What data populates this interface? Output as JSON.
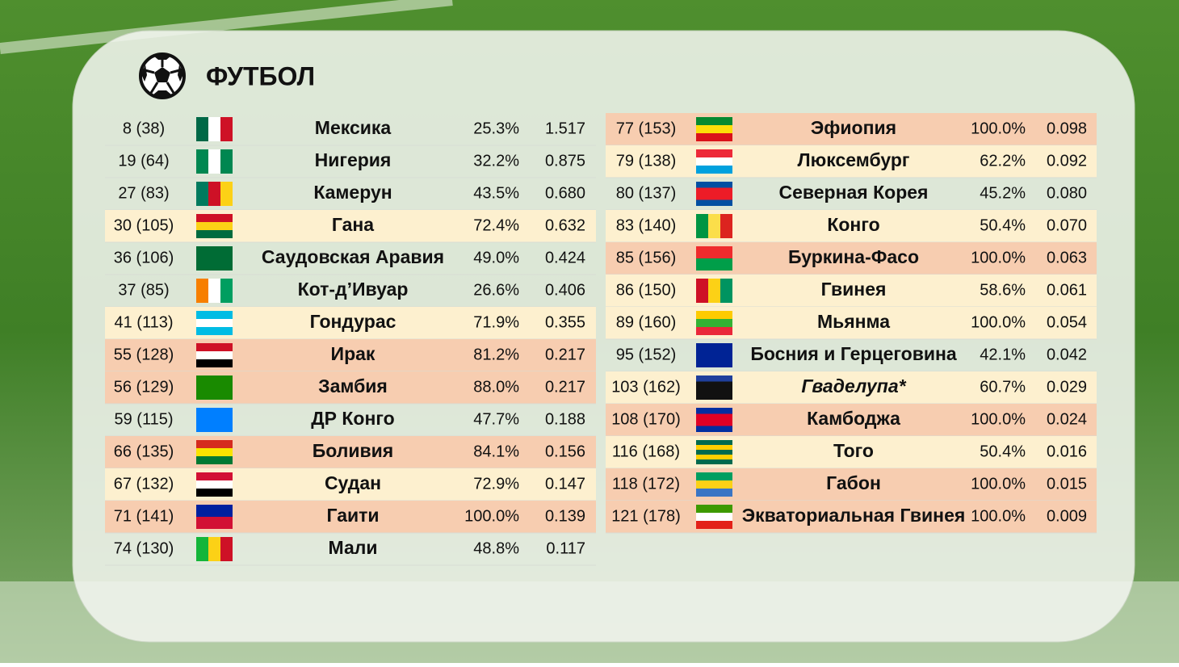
{
  "header": {
    "title": "ФУТБОЛ"
  },
  "tables": [
    {
      "rows": [
        {
          "rank": "8 (38)",
          "country": "Мексика",
          "share": "25.3%",
          "value": "1.517"
        },
        {
          "rank": "19 (64)",
          "country": "Нигерия",
          "share": "32.2%",
          "value": "0.875"
        },
        {
          "rank": "27 (83)",
          "country": "Камерун",
          "share": "43.5%",
          "value": "0.680"
        },
        {
          "rank": "30 (105)",
          "country": "Гана",
          "share": "72.4%",
          "value": "0.632",
          "fill": "#fdf0cf"
        },
        {
          "rank": "36 (106)",
          "country": "Саудовская Аравия",
          "share": "49.0%",
          "value": "0.424"
        },
        {
          "rank": "37 (85)",
          "country": "Кот-д’Ивуар",
          "share": "26.6%",
          "value": "0.406"
        },
        {
          "rank": "41 (113)",
          "country": "Гондурас",
          "share": "71.9%",
          "value": "0.355",
          "fill": "#fdf0cf"
        },
        {
          "rank": "55 (128)",
          "country": "Ирак",
          "share": "81.2%",
          "value": "0.217",
          "fill": "#f7cdb0"
        },
        {
          "rank": "56 (129)",
          "country": "Замбия",
          "share": "88.0%",
          "value": "0.217",
          "fill": "#f7cdb0"
        },
        {
          "rank": "59 (115)",
          "country": "ДР Конго",
          "share": "47.7%",
          "value": "0.188"
        },
        {
          "rank": "66 (135)",
          "country": "Боливия",
          "share": "84.1%",
          "value": "0.156",
          "fill": "#f7cdb0"
        },
        {
          "rank": "67 (132)",
          "country": "Судан",
          "share": "72.9%",
          "value": "0.147",
          "fill": "#fdf0cf"
        },
        {
          "rank": "71 (141)",
          "country": "Гаити",
          "share": "100.0%",
          "value": "0.139",
          "fill": "#f7cdb0"
        },
        {
          "rank": "74 (130)",
          "country": "Мали",
          "share": "48.8%",
          "value": "0.117"
        }
      ]
    },
    {
      "rows": [
        {
          "rank": "77 (153)",
          "country": "Эфиопия",
          "share": "100.0%",
          "value": "0.098",
          "fill": "#f7cdb0"
        },
        {
          "rank": "79 (138)",
          "country": "Люксембург",
          "share": "62.2%",
          "value": "0.092",
          "fill": "#fdf0cf"
        },
        {
          "rank": "80 (137)",
          "country": "Северная Корея",
          "share": "45.2%",
          "value": "0.080"
        },
        {
          "rank": "83 (140)",
          "country": "Конго",
          "share": "50.4%",
          "value": "0.070",
          "fill": "#fdf0cf"
        },
        {
          "rank": "85 (156)",
          "country": "Буркина-Фасо",
          "share": "100.0%",
          "value": "0.063",
          "fill": "#f7cdb0"
        },
        {
          "rank": "86 (150)",
          "country": "Гвинея",
          "share": "58.6%",
          "value": "0.061",
          "fill": "#fdf0cf"
        },
        {
          "rank": "89 (160)",
          "country": "Мьянма",
          "share": "100.0%",
          "value": "0.054",
          "fill": "#fdf0cf"
        },
        {
          "rank": "95 (152)",
          "country": "Босния и Герцеговина",
          "share": "42.1%",
          "value": "0.042"
        },
        {
          "rank": "103 (162)",
          "country": "Гваделупа*",
          "share": "60.7%",
          "value": "0.029",
          "fill": "#fdf0cf",
          "italic": true
        },
        {
          "rank": "108 (170)",
          "country": "Камбоджа",
          "share": "100.0%",
          "value": "0.024",
          "fill": "#f7cdb0"
        },
        {
          "rank": "116 (168)",
          "country": "Того",
          "share": "50.4%",
          "value": "0.016",
          "fill": "#fdf0cf"
        },
        {
          "rank": "118 (172)",
          "country": "Габон",
          "share": "100.0%",
          "value": "0.015",
          "fill": "#f7cdb0"
        },
        {
          "rank": "121 (178)",
          "country": "Экваториальная Гвинея",
          "share": "100.0%",
          "value": "0.009",
          "fill": "#f7cdb0"
        }
      ]
    }
  ]
}
